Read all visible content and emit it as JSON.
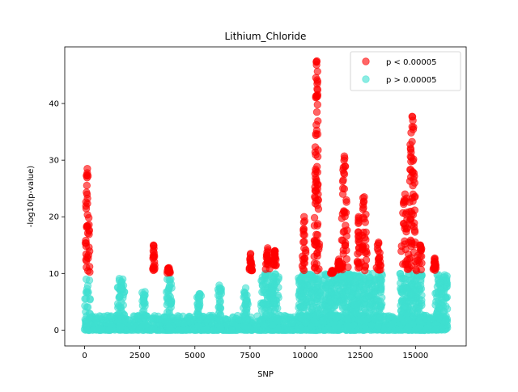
{
  "chart_data": {
    "type": "scatter",
    "title": "Lithium_Chloride",
    "xlabel": "SNP",
    "ylabel": "-log10(p-value)",
    "xlim": [
      -900,
      17300
    ],
    "ylim": [
      -2.8,
      50
    ],
    "xticks": [
      0,
      2500,
      5000,
      7500,
      10000,
      12500,
      15000
    ],
    "xtick_labels": [
      "0",
      "2500",
      "5000",
      "7500",
      "10000",
      "12500",
      "15000"
    ],
    "yticks": [
      0,
      10,
      20,
      30,
      40
    ],
    "ytick_labels": [
      "0",
      "10",
      "20",
      "30",
      "40"
    ],
    "legend_position": "top-right",
    "grid": false,
    "series": [
      {
        "name": "p < 0.00005",
        "color": "#ff0000",
        "opacity": 0.6,
        "peaks": [
          {
            "x": [
              0,
              250
            ],
            "y": [
              10.2,
              28.5
            ]
          },
          {
            "x": [
              3050,
              3200
            ],
            "y": [
              10.5,
              15.0
            ]
          },
          {
            "x": [
              3700,
              3950
            ],
            "y": [
              10.0,
              11.0
            ]
          },
          {
            "x": [
              7450,
              7600
            ],
            "y": [
              10.5,
              13.5
            ]
          },
          {
            "x": [
              8200,
              8400
            ],
            "y": [
              10.5,
              14.5
            ]
          },
          {
            "x": [
              8550,
              8700
            ],
            "y": [
              10.5,
              14.0
            ]
          },
          {
            "x": [
              9850,
              10050
            ],
            "y": [
              10.5,
              20.0
            ]
          },
          {
            "x": [
              10400,
              10650
            ],
            "y": [
              10.5,
              47.5
            ]
          },
          {
            "x": [
              11150,
              11300
            ],
            "y": [
              10.0,
              10.5
            ]
          },
          {
            "x": [
              11450,
              11600
            ],
            "y": [
              10.5,
              12.5
            ]
          },
          {
            "x": [
              11600,
              11950
            ],
            "y": [
              10.5,
              30.7
            ]
          },
          {
            "x": [
              12350,
              12500
            ],
            "y": [
              10.5,
              20.0
            ]
          },
          {
            "x": [
              12500,
              12850
            ],
            "y": [
              10.5,
              23.5
            ]
          },
          {
            "x": [
              13200,
              13450
            ],
            "y": [
              10.5,
              15.5
            ]
          },
          {
            "x": [
              14300,
              14750
            ],
            "y": [
              10.5,
              24.0
            ]
          },
          {
            "x": [
              14650,
              15050
            ],
            "y": [
              10.5,
              37.7
            ]
          },
          {
            "x": [
              15000,
              15400
            ],
            "y": [
              10.5,
              15.0
            ]
          },
          {
            "x": [
              15800,
              15950
            ],
            "y": [
              10.5,
              12.7
            ]
          }
        ]
      },
      {
        "name": "p > 0.00005",
        "color": "#40e0d0",
        "opacity": 0.6,
        "range": {
          "x": [
            0,
            16450
          ],
          "y": [
            0,
            10
          ]
        },
        "bumps": [
          {
            "x": [
              1500,
              1800
            ],
            "ymax": 9.3
          },
          {
            "x": [
              2600,
              2750
            ],
            "ymax": 6.8
          },
          {
            "x": [
              3700,
              3950
            ],
            "ymax": 9.5
          },
          {
            "x": [
              5100,
              5300
            ],
            "ymax": 6.5
          },
          {
            "x": [
              6000,
              6200
            ],
            "ymax": 8.0
          },
          {
            "x": [
              7200,
              7400
            ],
            "ymax": 7.5
          },
          {
            "x": [
              8000,
              8800
            ],
            "ymax": 10.0
          },
          {
            "x": [
              9700,
              11300
            ],
            "ymax": 10.0
          },
          {
            "x": [
              11300,
              13500
            ],
            "ymax": 10.0
          },
          {
            "x": [
              14300,
              15300
            ],
            "ymax": 10.0
          },
          {
            "x": [
              15900,
              16450
            ],
            "ymax": 9.8
          }
        ]
      }
    ]
  }
}
